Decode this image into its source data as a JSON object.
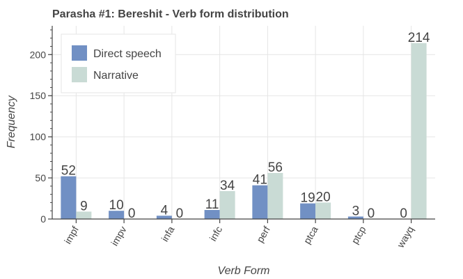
{
  "chart_data": {
    "type": "bar",
    "title": "Parasha #1: Bereshit - Verb form distribution",
    "xlabel": "Verb Form",
    "ylabel": "Frequency",
    "categories": [
      "impf",
      "impv",
      "infa",
      "infc",
      "perf",
      "ptca",
      "ptcp",
      "wayq"
    ],
    "series": [
      {
        "name": "Direct speech",
        "color": "#7190c4",
        "values": [
          52,
          10,
          4,
          11,
          41,
          19,
          3,
          0
        ]
      },
      {
        "name": "Narrative",
        "color": "#c9dbd5",
        "values": [
          9,
          0,
          0,
          34,
          56,
          20,
          0,
          214
        ]
      }
    ],
    "ylim": [
      0,
      235
    ],
    "yticks": [
      0,
      50,
      100,
      150,
      200
    ],
    "grid": true,
    "legend": "top-left"
  }
}
